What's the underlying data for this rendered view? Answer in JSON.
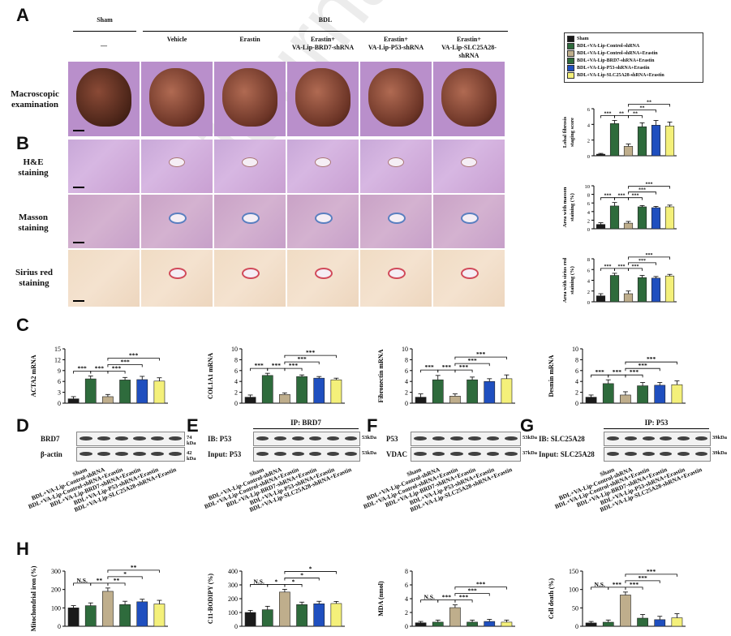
{
  "panels": {
    "a": "A",
    "b": "B",
    "c": "C",
    "d": "D",
    "e": "E",
    "f": "F",
    "g": "G",
    "h": "H"
  },
  "watermark": "Journal Pre-proof",
  "groups": {
    "sham": "Sham",
    "bdl": "BDL"
  },
  "columns": [
    "—",
    "Vehicle",
    "Erastin",
    "Erastin+\nVA-Lip-BRD7-shRNA",
    "Erastin+\nVA-Lip-P53-shRNA",
    "Erastin+\nVA-Lip-SLC25A28-shRNA"
  ],
  "row_labels": {
    "macro": "Macroscopic\nexamination",
    "he": "H&E\nstaining",
    "masson": "Masson\nstaining",
    "sirius": "Sirius red\nstaining"
  },
  "legend": [
    {
      "label": "Sham",
      "color": "#1a1a1a"
    },
    {
      "label": "BDL+VA-Lip-Control-shRNA",
      "color": "#2e6b3c"
    },
    {
      "label": "BDL+VA-Lip-Control-shRNA+Erastin",
      "color": "#bfae8c"
    },
    {
      "label": "BDL+VA-Lip-BRD7-shRNA+Erastin",
      "color": "#2e6b3c"
    },
    {
      "label": "BDL+VA-Lip-P53-shRNA+Erastin",
      "color": "#1f4fbf"
    },
    {
      "label": "BDL+VA-Lip-SLC25A28-shRNA+Erastin",
      "color": "#f4f07a"
    }
  ],
  "lanes": [
    "Sham",
    "BDL+VA-Lip-Control-shRNA",
    "BDL+VA-Lip-Control-shRNA+Erastin",
    "BDL+VA-Lip-BRD7-shRNA+Erastin",
    "BDL+VA-Lip-P53-shRNA+Erastin",
    "BDL+VA-Lip-SLC25A28-shRNA+Erastin"
  ],
  "blots": {
    "d": {
      "rows": [
        "BRD7",
        "β-actin"
      ],
      "kda": [
        "74 kDa",
        "42 kDa"
      ]
    },
    "e": {
      "title": "IP: BRD7",
      "rows": [
        "IB: P53",
        "Input: P53"
      ],
      "kda": [
        "53kDa",
        "53kDa"
      ]
    },
    "f": {
      "rows": [
        "P53",
        "VDAC"
      ],
      "kda": [
        "53kDa",
        "37kDa"
      ]
    },
    "g": {
      "title": "IP: P53",
      "rows": [
        "IB: SLC25A28",
        "Input: SLC25A28"
      ],
      "kda": [
        "39kDa",
        "39kDa"
      ]
    }
  },
  "chart_data": [
    {
      "id": "b1",
      "type": "bar",
      "ylabel": "Lobal fibrosis\nstaging score",
      "ylim": [
        0,
        6
      ],
      "ticks": [
        0,
        2,
        4,
        6
      ],
      "values": [
        0.2,
        4.1,
        1.2,
        3.7,
        3.9,
        3.8
      ],
      "errors": [
        0.1,
        0.4,
        0.3,
        0.5,
        0.6,
        0.5
      ],
      "sig": [
        {
          "a": 0,
          "b": 1,
          "t": "***",
          "lvl": 0
        },
        {
          "a": 1,
          "b": 2,
          "t": "**",
          "lvl": 0
        },
        {
          "a": 2,
          "b": 3,
          "t": "**",
          "lvl": 0
        },
        {
          "a": 2,
          "b": 4,
          "t": "**",
          "lvl": 1
        },
        {
          "a": 2,
          "b": 5,
          "t": "**",
          "lvl": 2
        }
      ]
    },
    {
      "id": "b2",
      "type": "bar",
      "ylabel": "Area with masson\nstaining (%)",
      "ylim": [
        0,
        10
      ],
      "ticks": [
        0,
        2,
        4,
        6,
        8,
        10
      ],
      "values": [
        1.0,
        5.3,
        1.3,
        5.1,
        4.9,
        5.1
      ],
      "errors": [
        0.4,
        0.8,
        0.4,
        0.3,
        0.3,
        0.4
      ],
      "sig": [
        {
          "a": 0,
          "b": 1,
          "t": "***",
          "lvl": 0
        },
        {
          "a": 1,
          "b": 2,
          "t": "***",
          "lvl": 0
        },
        {
          "a": 2,
          "b": 3,
          "t": "***",
          "lvl": 0
        },
        {
          "a": 2,
          "b": 4,
          "t": "***",
          "lvl": 1
        },
        {
          "a": 2,
          "b": 5,
          "t": "***",
          "lvl": 2
        }
      ]
    },
    {
      "id": "b3",
      "type": "bar",
      "ylabel": "Area with sirius red\nstaining (%)",
      "ylim": [
        0,
        8
      ],
      "ticks": [
        0,
        2,
        4,
        6,
        8
      ],
      "values": [
        1.1,
        4.9,
        1.5,
        4.5,
        4.4,
        4.8
      ],
      "errors": [
        0.4,
        0.4,
        0.5,
        0.4,
        0.3,
        0.3
      ],
      "sig": [
        {
          "a": 0,
          "b": 1,
          "t": "***",
          "lvl": 0
        },
        {
          "a": 1,
          "b": 2,
          "t": "***",
          "lvl": 0
        },
        {
          "a": 2,
          "b": 3,
          "t": "***",
          "lvl": 0
        },
        {
          "a": 2,
          "b": 4,
          "t": "***",
          "lvl": 1
        },
        {
          "a": 2,
          "b": 5,
          "t": "***",
          "lvl": 2
        }
      ]
    },
    {
      "id": "c1",
      "type": "bar",
      "ylabel": "ACTA2 mRNA",
      "ylim": [
        0,
        15
      ],
      "ticks": [
        0,
        3,
        6,
        9,
        12,
        15
      ],
      "values": [
        1.2,
        6.7,
        1.8,
        6.4,
        6.5,
        6.1
      ],
      "errors": [
        0.6,
        0.8,
        0.6,
        0.7,
        0.9,
        0.9
      ],
      "sig": [
        {
          "a": 0,
          "b": 1,
          "t": "***",
          "lvl": 0
        },
        {
          "a": 1,
          "b": 2,
          "t": "***",
          "lvl": 0
        },
        {
          "a": 2,
          "b": 3,
          "t": "***",
          "lvl": 0
        },
        {
          "a": 2,
          "b": 4,
          "t": "***",
          "lvl": 1
        },
        {
          "a": 2,
          "b": 5,
          "t": "***",
          "lvl": 2
        }
      ]
    },
    {
      "id": "c2",
      "type": "bar",
      "ylabel": "COL1A1 mRNA",
      "ylim": [
        0,
        10
      ],
      "ticks": [
        0,
        2,
        4,
        6,
        8,
        10
      ],
      "values": [
        1.1,
        5.1,
        1.6,
        4.9,
        4.6,
        4.3
      ],
      "errors": [
        0.4,
        0.4,
        0.3,
        0.3,
        0.3,
        0.3
      ],
      "sig": [
        {
          "a": 0,
          "b": 1,
          "t": "***",
          "lvl": 0
        },
        {
          "a": 1,
          "b": 2,
          "t": "***",
          "lvl": 0
        },
        {
          "a": 2,
          "b": 3,
          "t": "***",
          "lvl": 0
        },
        {
          "a": 2,
          "b": 4,
          "t": "***",
          "lvl": 1
        },
        {
          "a": 2,
          "b": 5,
          "t": "***",
          "lvl": 2
        }
      ]
    },
    {
      "id": "c3",
      "type": "bar",
      "ylabel": "Fibronectin mRNA",
      "ylim": [
        0,
        10
      ],
      "ticks": [
        0,
        2,
        4,
        6,
        8,
        10
      ],
      "values": [
        1.1,
        4.3,
        1.3,
        4.3,
        4.0,
        4.5
      ],
      "errors": [
        0.6,
        0.8,
        0.4,
        0.5,
        0.5,
        0.7
      ],
      "sig": [
        {
          "a": 0,
          "b": 1,
          "t": "***",
          "lvl": 0
        },
        {
          "a": 1,
          "b": 2,
          "t": "***",
          "lvl": 0
        },
        {
          "a": 2,
          "b": 3,
          "t": "***",
          "lvl": 0
        },
        {
          "a": 2,
          "b": 4,
          "t": "***",
          "lvl": 1
        },
        {
          "a": 2,
          "b": 5,
          "t": "***",
          "lvl": 2
        }
      ]
    },
    {
      "id": "c4",
      "type": "bar",
      "ylabel": "Desmin mRNA",
      "ylim": [
        0,
        10
      ],
      "ticks": [
        0,
        2,
        4,
        6,
        8,
        10
      ],
      "values": [
        1.1,
        3.6,
        1.5,
        3.2,
        3.3,
        3.4
      ],
      "errors": [
        0.4,
        0.7,
        0.6,
        0.6,
        0.5,
        0.7
      ],
      "sig": [
        {
          "a": 0,
          "b": 1,
          "t": "***",
          "lvl": 0
        },
        {
          "a": 1,
          "b": 2,
          "t": "***",
          "lvl": 0
        },
        {
          "a": 2,
          "b": 3,
          "t": "***",
          "lvl": 0
        },
        {
          "a": 2,
          "b": 4,
          "t": "***",
          "lvl": 1
        },
        {
          "a": 2,
          "b": 5,
          "t": "***",
          "lvl": 2
        }
      ]
    },
    {
      "id": "h1",
      "type": "bar",
      "ylabel": "Mitochondrial iron (%)",
      "ylim": [
        0,
        300
      ],
      "ticks": [
        0,
        100,
        200,
        300
      ],
      "values": [
        100,
        112,
        190,
        118,
        133,
        121
      ],
      "errors": [
        12,
        15,
        18,
        18,
        14,
        20
      ],
      "sig": [
        {
          "a": 0,
          "b": 1,
          "t": "N.S.",
          "lvl": 0
        },
        {
          "a": 1,
          "b": 2,
          "t": "**",
          "lvl": 0
        },
        {
          "a": 2,
          "b": 3,
          "t": "**",
          "lvl": 0
        },
        {
          "a": 2,
          "b": 4,
          "t": "*",
          "lvl": 1
        },
        {
          "a": 2,
          "b": 5,
          "t": "**",
          "lvl": 2
        }
      ]
    },
    {
      "id": "h2",
      "type": "bar",
      "ylabel": "C11-BODIPY (%)",
      "ylim": [
        0,
        400
      ],
      "ticks": [
        0,
        100,
        200,
        300,
        400
      ],
      "values": [
        100,
        120,
        248,
        157,
        163,
        165
      ],
      "errors": [
        15,
        25,
        20,
        18,
        18,
        15
      ],
      "sig": [
        {
          "a": 0,
          "b": 1,
          "t": "N.S.",
          "lvl": 0
        },
        {
          "a": 1,
          "b": 2,
          "t": "*",
          "lvl": 0
        },
        {
          "a": 2,
          "b": 3,
          "t": "*",
          "lvl": 0
        },
        {
          "a": 2,
          "b": 4,
          "t": "*",
          "lvl": 1
        },
        {
          "a": 2,
          "b": 5,
          "t": "*",
          "lvl": 2
        }
      ]
    },
    {
      "id": "h3",
      "type": "bar",
      "ylabel": "MDA (nmol)",
      "ylim": [
        0,
        8
      ],
      "ticks": [
        0,
        2,
        4,
        6,
        8
      ],
      "values": [
        0.5,
        0.6,
        2.7,
        0.6,
        0.7,
        0.6
      ],
      "errors": [
        0.2,
        0.3,
        0.4,
        0.3,
        0.3,
        0.3
      ],
      "sig": [
        {
          "a": 0,
          "b": 1,
          "t": "N.S.",
          "lvl": 0
        },
        {
          "a": 1,
          "b": 2,
          "t": "***",
          "lvl": 0
        },
        {
          "a": 2,
          "b": 3,
          "t": "***",
          "lvl": 0
        },
        {
          "a": 2,
          "b": 4,
          "t": "***",
          "lvl": 1
        },
        {
          "a": 2,
          "b": 5,
          "t": "***",
          "lvl": 2
        }
      ]
    },
    {
      "id": "h4",
      "type": "bar",
      "ylabel": "Cell death (%)",
      "ylim": [
        0,
        150
      ],
      "ticks": [
        0,
        50,
        100,
        150
      ],
      "values": [
        9,
        11,
        85,
        22,
        18,
        23
      ],
      "errors": [
        4,
        6,
        8,
        10,
        9,
        11
      ],
      "sig": [
        {
          "a": 0,
          "b": 1,
          "t": "N.S.",
          "lvl": 0
        },
        {
          "a": 1,
          "b": 2,
          "t": "***",
          "lvl": 0
        },
        {
          "a": 2,
          "b": 3,
          "t": "***",
          "lvl": 0
        },
        {
          "a": 2,
          "b": 4,
          "t": "***",
          "lvl": 1
        },
        {
          "a": 2,
          "b": 5,
          "t": "***",
          "lvl": 2
        }
      ]
    }
  ]
}
